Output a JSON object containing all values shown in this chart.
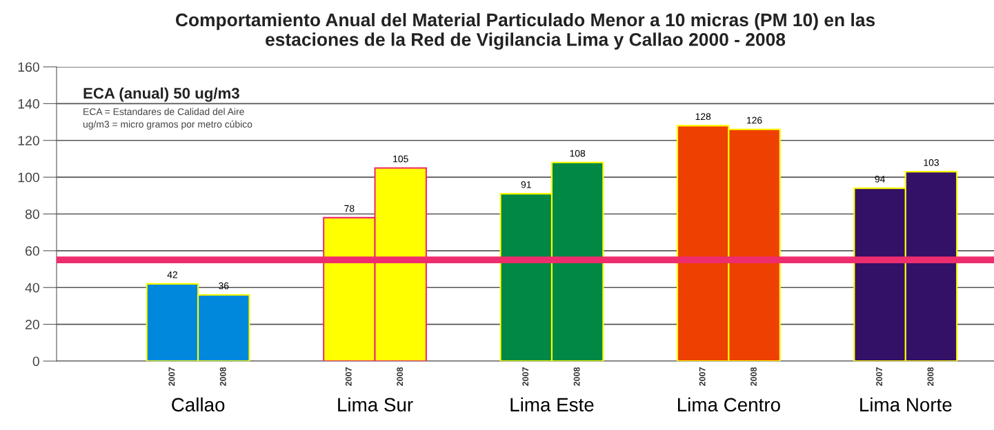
{
  "chart_data": {
    "type": "bar",
    "title": "Comportamiento Anual del Material Particulado Menor a 10 micras (PM 10) en las\nestaciones de la Red de Vigilancia Lima y Callao 2000 - 2008",
    "categories": [
      "Callao",
      "Lima Sur",
      "Lima Este",
      "Lima Centro",
      "Lima Norte"
    ],
    "series": [
      {
        "name": "2007",
        "colors": [
          "#0088dd",
          "#ffff00",
          "#008844",
          "#ee4000",
          "#331166"
        ],
        "values": [
          42,
          78,
          91,
          128,
          94
        ]
      },
      {
        "name": "2008",
        "colors": [
          "#0088dd",
          "#ffff00",
          "#008844",
          "#ee4000",
          "#331166"
        ],
        "values": [
          36,
          105,
          108,
          126,
          103
        ]
      }
    ],
    "ylim": [
      0,
      160
    ],
    "yticks": [
      0,
      20,
      40,
      60,
      80,
      100,
      120,
      140,
      160
    ],
    "grid": "y",
    "data_labels": true,
    "ref_lines": [
      {
        "axis": "y",
        "value": 55,
        "color": "#ee2d6e"
      }
    ],
    "annotations": [
      "ECA (anual) 50 ug/m3",
      "ECA = Estandares de Calidad del Aire\nug/m3 = micro gramos por metro cúbico"
    ]
  }
}
